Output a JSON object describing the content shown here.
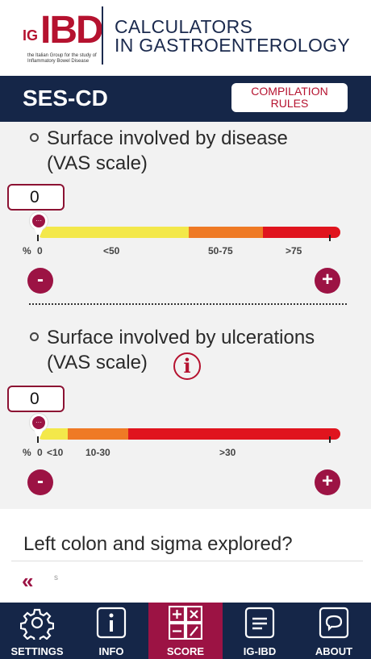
{
  "header": {
    "logo_prefix": "IG",
    "logo_main": "IBD",
    "logo_tagline_1": "the Italian Group for the study of",
    "logo_tagline_2": "Inflammatory Bowel Disease",
    "app_title_line1": "CALCULATORS",
    "app_title_line2": "IN GASTROENTEROLOGY"
  },
  "title_bar": {
    "score_name": "SES-CD",
    "rules_button_line1": "COMPILATION",
    "rules_button_line2": "RULES"
  },
  "questions": [
    {
      "line1": "Surface involved by disease",
      "line2": "(VAS scale)",
      "value": "0",
      "pct_label": "%",
      "tick_labels": [
        "0",
        "<50",
        "50-75",
        ">75"
      ],
      "segments": [
        {
          "color": "#f3e84a",
          "fraction": 0.5
        },
        {
          "color": "#ef7a25",
          "fraction": 0.245
        },
        {
          "color": "#e0141e",
          "fraction": 0.255
        }
      ],
      "minus_label": "-",
      "plus_label": "+"
    },
    {
      "line1": "Surface involved by ulcerations",
      "line2": "(VAS scale)",
      "value": "0",
      "pct_label": "%",
      "tick_labels": [
        "0",
        "<10",
        "10-30",
        ">30"
      ],
      "segments": [
        {
          "color": "#f3e84a",
          "fraction": 0.1
        },
        {
          "color": "#ef7a25",
          "fraction": 0.2
        },
        {
          "color": "#e0141e",
          "fraction": 0.7
        }
      ],
      "minus_label": "-",
      "plus_label": "+",
      "info_glyph": "i"
    }
  ],
  "next_question": "Left colon and sigma explored?",
  "back_chevrons": "«",
  "back_hint": "s",
  "nav": [
    {
      "label": "SETTINGS",
      "icon": "gear-icon",
      "active": false
    },
    {
      "label": "INFO",
      "icon": "info-icon",
      "active": false
    },
    {
      "label": "SCORE",
      "icon": "calculator-icon",
      "active": true
    },
    {
      "label": "IG-IBD",
      "icon": "document-icon",
      "active": false
    },
    {
      "label": "ABOUT",
      "icon": "speech-bubble-icon",
      "active": false
    }
  ],
  "colors": {
    "navy": "#152648",
    "accent": "#9c1344",
    "logo_red": "#b5122f"
  }
}
